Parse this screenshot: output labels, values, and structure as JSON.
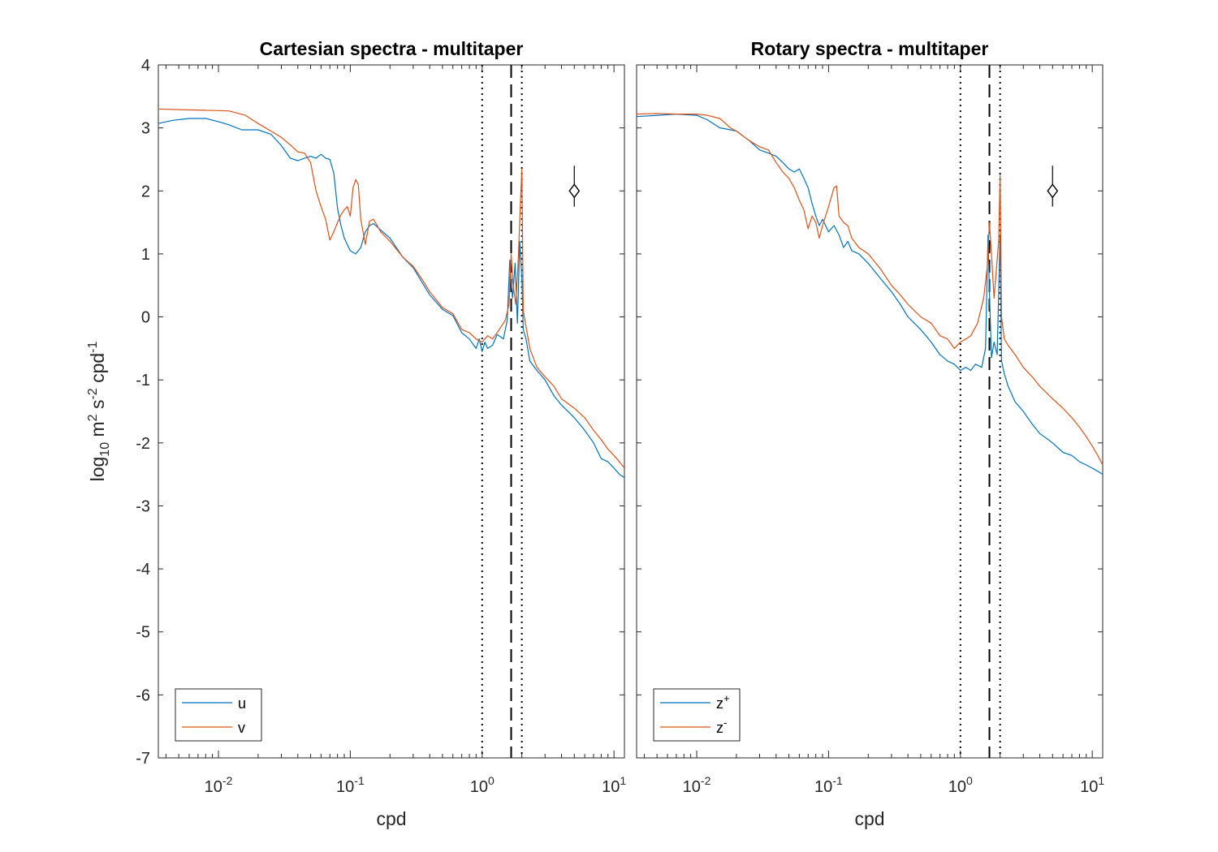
{
  "chart_data": [
    {
      "type": "line",
      "title": "Cartesian spectra - multitaper",
      "xlabel": "cpd",
      "ylabel": {
        "base": "log",
        "sub": "10",
        "parts": [
          " m",
          "2",
          " s",
          "-2",
          " cpd",
          "-1"
        ]
      },
      "xscale": "log",
      "xlim": [
        0.0035,
        12
      ],
      "ylim": [
        -7,
        4
      ],
      "yticks": [
        "4",
        "3",
        "2",
        "1",
        "0",
        "-1",
        "-2",
        "-3",
        "-4",
        "-5",
        "-6",
        "-7"
      ],
      "xticks": [
        {
          "base": "10",
          "exp": "-2",
          "value": 0.01
        },
        {
          "base": "10",
          "exp": "-1",
          "value": 0.1
        },
        {
          "base": "10",
          "exp": "0",
          "value": 1
        },
        {
          "base": "10",
          "exp": "1",
          "value": 10
        }
      ],
      "vlines": [
        {
          "x": 1.0,
          "style": "dotted"
        },
        {
          "x": 1.66,
          "style": "dashed"
        },
        {
          "x": 2.0,
          "style": "dotted"
        }
      ],
      "errorbar": {
        "x": 5.0,
        "y": 2.0,
        "ylow": 1.75,
        "yhigh": 2.4
      },
      "legend": {
        "position": "bottom-left"
      },
      "series": [
        {
          "name": "u",
          "label": "u",
          "color": "#0072BD",
          "x": [
            0.0035,
            0.0045,
            0.006,
            0.008,
            0.01,
            0.012,
            0.015,
            0.02,
            0.025,
            0.03,
            0.035,
            0.04,
            0.045,
            0.05,
            0.055,
            0.06,
            0.065,
            0.07,
            0.075,
            0.08,
            0.085,
            0.09,
            0.1,
            0.11,
            0.12,
            0.13,
            0.14,
            0.15,
            0.17,
            0.2,
            0.25,
            0.3,
            0.35,
            0.4,
            0.5,
            0.6,
            0.7,
            0.8,
            0.9,
            0.95,
            1.0,
            1.05,
            1.1,
            1.2,
            1.3,
            1.45,
            1.55,
            1.62,
            1.66,
            1.7,
            1.78,
            1.85,
            1.93,
            2.0,
            2.05,
            2.15,
            2.3,
            2.6,
            3.0,
            3.5,
            4.0,
            5.0,
            6.0,
            7.0,
            8.0,
            9.0,
            10.0,
            11.0,
            12.0
          ],
          "y": [
            3.07,
            3.12,
            3.15,
            3.15,
            3.1,
            3.05,
            2.97,
            2.97,
            2.9,
            2.72,
            2.52,
            2.48,
            2.52,
            2.55,
            2.52,
            2.58,
            2.52,
            2.5,
            2.28,
            1.72,
            1.45,
            1.25,
            1.05,
            1.0,
            1.1,
            1.35,
            1.45,
            1.48,
            1.38,
            1.25,
            0.95,
            0.78,
            0.55,
            0.35,
            0.12,
            0.02,
            -0.25,
            -0.35,
            -0.5,
            -0.35,
            -0.55,
            -0.4,
            -0.5,
            -0.45,
            -0.28,
            -0.35,
            -0.05,
            0.9,
            0.55,
            0.3,
            0.85,
            -0.1,
            1.2,
            0.6,
            -0.2,
            -0.35,
            -0.7,
            -0.85,
            -1.0,
            -1.25,
            -1.4,
            -1.6,
            -1.8,
            -2.0,
            -2.25,
            -2.3,
            -2.4,
            -2.5,
            -2.55
          ]
        },
        {
          "name": "v",
          "label": "v",
          "color": "#D95319",
          "x": [
            0.0035,
            0.005,
            0.008,
            0.012,
            0.016,
            0.02,
            0.025,
            0.03,
            0.035,
            0.04,
            0.045,
            0.05,
            0.055,
            0.06,
            0.065,
            0.07,
            0.075,
            0.08,
            0.085,
            0.09,
            0.095,
            0.1,
            0.105,
            0.11,
            0.115,
            0.12,
            0.13,
            0.14,
            0.15,
            0.16,
            0.17,
            0.2,
            0.25,
            0.3,
            0.35,
            0.4,
            0.5,
            0.6,
            0.7,
            0.8,
            0.9,
            1.0,
            1.1,
            1.2,
            1.35,
            1.5,
            1.6,
            1.66,
            1.72,
            1.8,
            1.87,
            1.95,
            2.0,
            2.05,
            2.15,
            2.3,
            2.6,
            3.0,
            3.5,
            4.0,
            5.0,
            6.0,
            7.0,
            8.0,
            9.0,
            10.0,
            11.0,
            12.0
          ],
          "y": [
            3.3,
            3.29,
            3.28,
            3.27,
            3.2,
            3.07,
            2.95,
            2.85,
            2.73,
            2.62,
            2.6,
            2.45,
            2.0,
            1.75,
            1.55,
            1.22,
            1.35,
            1.5,
            1.62,
            1.7,
            1.75,
            1.6,
            2.05,
            2.18,
            2.1,
            1.55,
            1.15,
            1.52,
            1.55,
            1.45,
            1.35,
            1.2,
            0.95,
            0.8,
            0.6,
            0.4,
            0.15,
            0.05,
            -0.2,
            -0.25,
            -0.35,
            -0.4,
            -0.3,
            -0.35,
            -0.2,
            -0.05,
            0.2,
            1.0,
            0.5,
            0.2,
            0.8,
            1.8,
            2.35,
            0.1,
            -0.15,
            -0.5,
            -0.8,
            -0.95,
            -1.1,
            -1.3,
            -1.45,
            -1.6,
            -1.8,
            -1.95,
            -2.1,
            -2.2,
            -2.3,
            -2.4
          ]
        }
      ]
    },
    {
      "type": "line",
      "title": "Rotary spectra - multitaper",
      "xlabel": "cpd",
      "xscale": "log",
      "xlim": [
        0.0035,
        12
      ],
      "ylim": [
        -7,
        4
      ],
      "xticks": [
        {
          "base": "10",
          "exp": "-2",
          "value": 0.01
        },
        {
          "base": "10",
          "exp": "-1",
          "value": 0.1
        },
        {
          "base": "10",
          "exp": "0",
          "value": 1
        },
        {
          "base": "10",
          "exp": "1",
          "value": 10
        }
      ],
      "vlines": [
        {
          "x": 1.0,
          "style": "dotted"
        },
        {
          "x": 1.66,
          "style": "dashed"
        },
        {
          "x": 2.0,
          "style": "dotted"
        }
      ],
      "errorbar": {
        "x": 5.0,
        "y": 2.0,
        "ylow": 1.75,
        "yhigh": 2.4
      },
      "legend": {
        "position": "bottom-left"
      },
      "series": [
        {
          "name": "z+",
          "label": "z",
          "label_sup": "+",
          "color": "#0072BD",
          "x": [
            0.0035,
            0.005,
            0.007,
            0.01,
            0.012,
            0.015,
            0.018,
            0.02,
            0.025,
            0.03,
            0.035,
            0.04,
            0.045,
            0.05,
            0.055,
            0.06,
            0.065,
            0.07,
            0.075,
            0.08,
            0.085,
            0.09,
            0.1,
            0.11,
            0.12,
            0.13,
            0.14,
            0.15,
            0.17,
            0.2,
            0.25,
            0.3,
            0.35,
            0.4,
            0.5,
            0.6,
            0.7,
            0.8,
            0.9,
            1.0,
            1.1,
            1.2,
            1.3,
            1.45,
            1.55,
            1.62,
            1.66,
            1.72,
            1.8,
            1.9,
            2.0,
            2.05,
            2.15,
            2.3,
            2.6,
            3.0,
            3.5,
            4.0,
            5.0,
            6.0,
            7.0,
            8.0,
            9.0,
            10.0,
            11.0,
            12.0
          ],
          "y": [
            3.18,
            3.2,
            3.22,
            3.2,
            3.13,
            3.0,
            2.97,
            2.95,
            2.8,
            2.65,
            2.6,
            2.55,
            2.45,
            2.35,
            2.3,
            2.35,
            2.2,
            2.05,
            1.8,
            1.6,
            1.45,
            1.55,
            1.35,
            1.45,
            1.3,
            1.1,
            1.2,
            1.05,
            1.0,
            0.85,
            0.6,
            0.4,
            0.2,
            0.0,
            -0.2,
            -0.4,
            -0.6,
            -0.7,
            -0.75,
            -0.85,
            -0.8,
            -0.85,
            -0.75,
            -0.8,
            -0.5,
            1.3,
            0.4,
            -0.65,
            -0.4,
            -0.6,
            1.3,
            -0.7,
            -0.9,
            -1.1,
            -1.35,
            -1.5,
            -1.7,
            -1.85,
            -2.0,
            -2.15,
            -2.2,
            -2.3,
            -2.35,
            -2.4,
            -2.45,
            -2.5
          ]
        },
        {
          "name": "z-",
          "label": "z",
          "label_sup": "-",
          "color": "#D95319",
          "x": [
            0.0035,
            0.005,
            0.007,
            0.01,
            0.012,
            0.015,
            0.018,
            0.02,
            0.025,
            0.03,
            0.035,
            0.04,
            0.045,
            0.05,
            0.055,
            0.06,
            0.065,
            0.07,
            0.075,
            0.08,
            0.085,
            0.09,
            0.1,
            0.11,
            0.115,
            0.12,
            0.13,
            0.14,
            0.15,
            0.17,
            0.2,
            0.25,
            0.3,
            0.35,
            0.4,
            0.5,
            0.6,
            0.7,
            0.8,
            0.9,
            1.0,
            1.1,
            1.2,
            1.35,
            1.5,
            1.6,
            1.66,
            1.72,
            1.8,
            1.9,
            1.95,
            2.0,
            2.05,
            2.15,
            2.3,
            2.6,
            3.0,
            3.5,
            4.0,
            5.0,
            6.0,
            7.0,
            8.0,
            9.0,
            10.0,
            11.0,
            12.0
          ],
          "y": [
            3.22,
            3.23,
            3.22,
            3.22,
            3.2,
            3.15,
            3.0,
            2.95,
            2.8,
            2.7,
            2.65,
            2.45,
            2.3,
            2.2,
            2.05,
            1.85,
            1.7,
            1.4,
            1.6,
            1.5,
            1.25,
            1.45,
            1.75,
            2.05,
            2.08,
            1.6,
            1.5,
            1.45,
            1.25,
            1.1,
            1.0,
            0.75,
            0.5,
            0.35,
            0.2,
            0.0,
            -0.1,
            -0.3,
            -0.35,
            -0.5,
            -0.4,
            -0.35,
            -0.3,
            -0.1,
            0.3,
            0.8,
            1.5,
            1.0,
            0.3,
            0.9,
            1.2,
            2.25,
            0.0,
            -0.35,
            -0.45,
            -0.6,
            -0.8,
            -0.95,
            -1.1,
            -1.3,
            -1.45,
            -1.6,
            -1.75,
            -1.9,
            -2.05,
            -2.2,
            -2.35
          ]
        }
      ]
    }
  ]
}
